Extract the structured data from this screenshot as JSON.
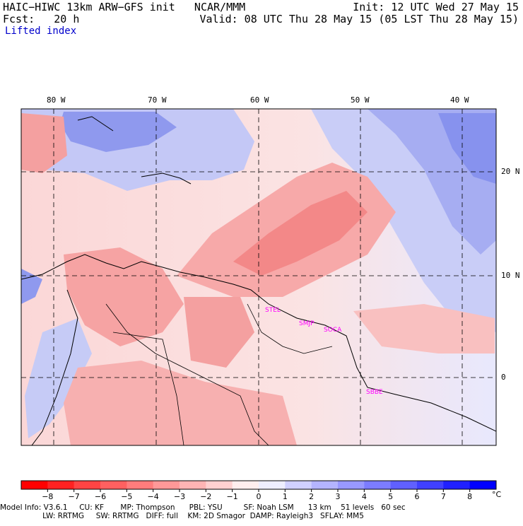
{
  "header": {
    "title_left": "HAIC−HIWC 13km ARW−GFS init   NCAR/MMM",
    "fcst_label": "Fcst:   20 h",
    "init": "Init: 12 UTC Wed 27 May 15",
    "valid": "Valid: 08 UTC Thu 28 May 15 (05 LST Thu 28 May 15)",
    "field": "Lifted index"
  },
  "map": {
    "lon_labels": [
      "80 W",
      "70 W",
      "60 W",
      "50 W",
      "40 W"
    ],
    "lat_labels": [
      "20 N",
      "10 N",
      "0"
    ],
    "stations": [
      "STEL",
      "SMJP",
      "SOCA",
      "SBBE"
    ]
  },
  "colorbar": {
    "ticks": [
      "−8",
      "−7",
      "−6",
      "−5",
      "−4",
      "−3",
      "−2",
      "−1",
      "0",
      "1",
      "2",
      "3",
      "4",
      "5",
      "6",
      "7",
      "8"
    ],
    "unit": "°C",
    "colors": [
      "#ff0000",
      "#ff2222",
      "#ff4444",
      "#ff6060",
      "#ff7c7c",
      "#ff9898",
      "#ffb4b4",
      "#ffd0d0",
      "#ffeeee",
      "#eeeeff",
      "#d0d0ff",
      "#b4b4ff",
      "#9898ff",
      "#7c7cff",
      "#6060ff",
      "#4040ff",
      "#2020ff",
      "#0000ff"
    ]
  },
  "footer": {
    "line1": "Model Info: V3.6.1     CU: KF       MP: Thompson      PBL: YSU         SF: Noah LSM      13 km    51 levels   60 sec",
    "line2": "                  LW: RRTMG     SW: RRTMG   DIFF: full    KM: 2D Smagor  DAMP: Rayleigh3   SFLAY: MM5"
  }
}
